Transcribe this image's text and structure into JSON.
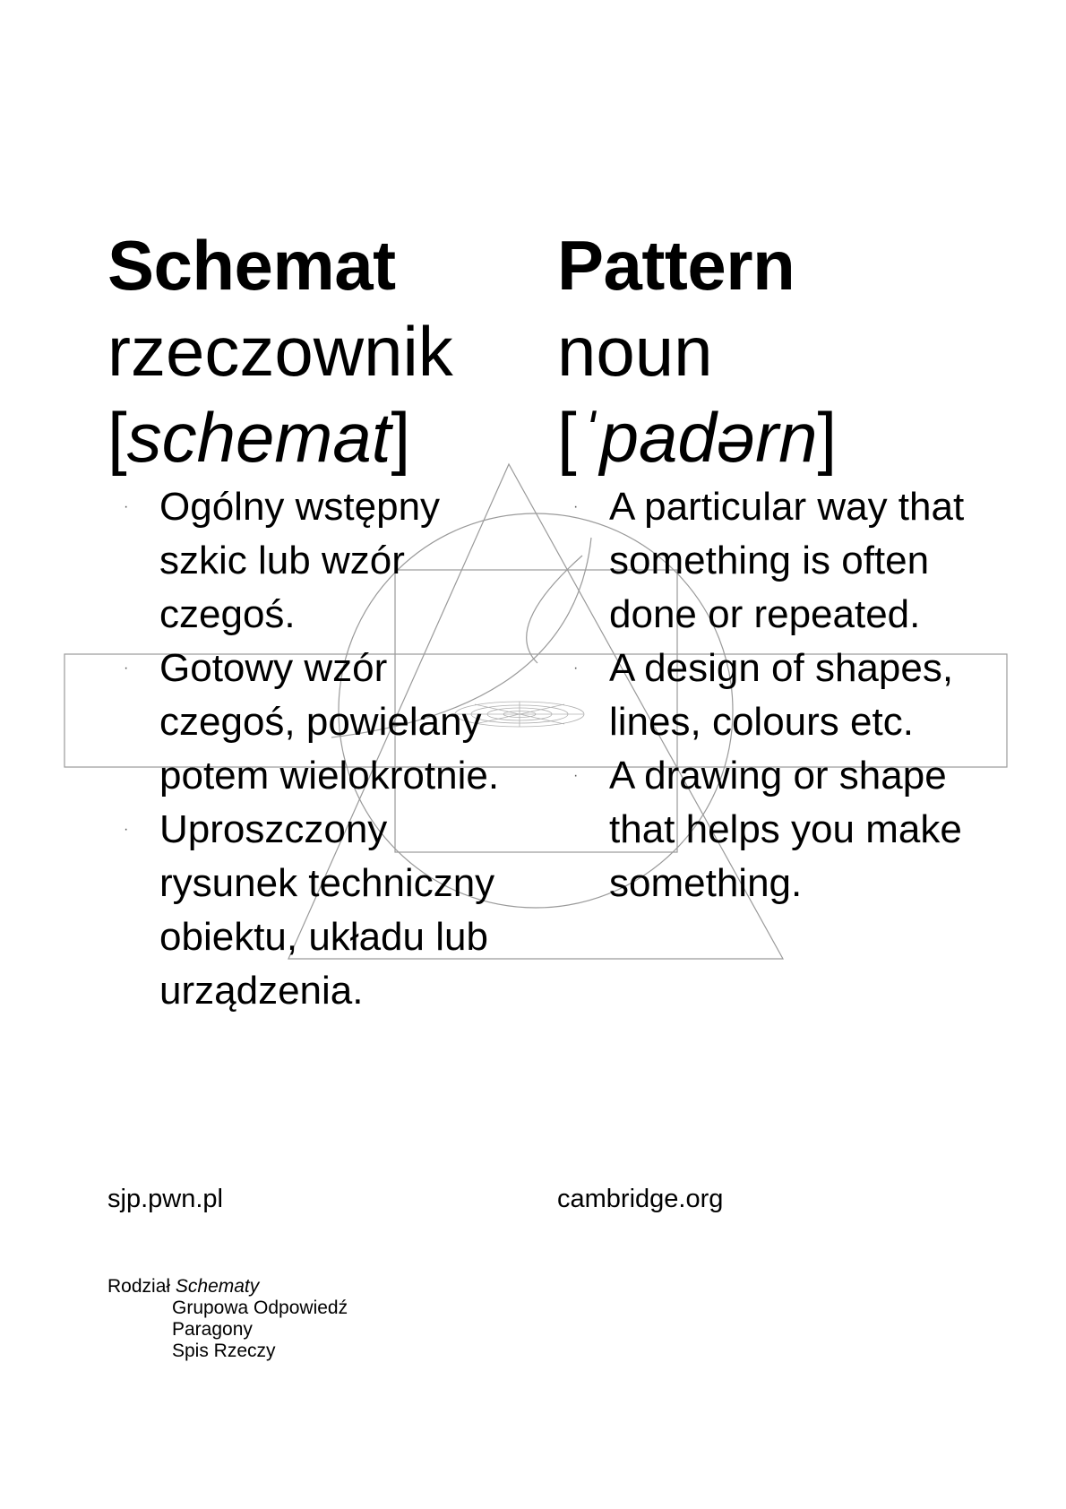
{
  "polish": {
    "headword": "Schemat",
    "part_of_speech": "rzeczownik",
    "bracket_open": "[",
    "pronunciation": "schemat",
    "bracket_close": "]",
    "definitions": [
      "Ogólny wstępny szkic lub wzór czegoś.",
      "Gotowy wzór czegoś, powielany potem wielokrotnie.",
      "Uproszczony rysunek techniczny obiektu, układu lub urządzenia."
    ],
    "source": "sjp.pwn.pl"
  },
  "english": {
    "headword": "Pattern",
    "part_of_speech": "noun",
    "bracket_open": "[",
    "pronunciation": "ˈpadərn",
    "bracket_close": "]",
    "definitions": [
      "A particular way that something is often done or repeated.",
      "A design of shapes, lines, colours etc.",
      "A drawing or shape that helps you make something."
    ],
    "source": "cambridge.org"
  },
  "bullet_symbol": "·",
  "footer": {
    "chapter_prefix": "Rodział",
    "chapter_name": "Schematy",
    "items": [
      "Grupowa Odpowiedź",
      "Paragony",
      "Spis Rzeczy"
    ]
  },
  "colors": {
    "text": "#000000",
    "background": "#ffffff",
    "line_art": "#9a9a9a"
  }
}
